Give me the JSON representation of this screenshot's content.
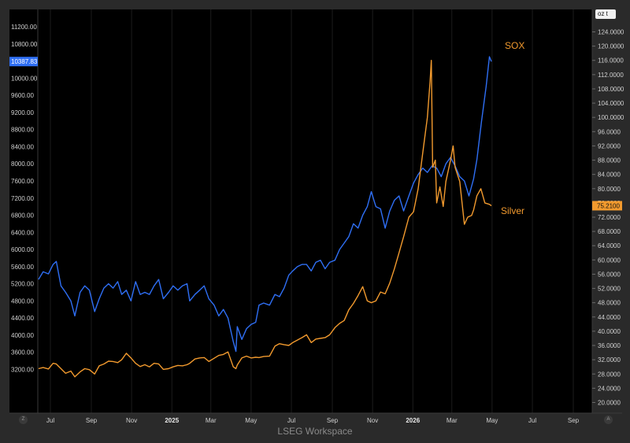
{
  "footer_text": "LSEG Workspace",
  "unit_selector": "oz t",
  "corner_left": "Z",
  "corner_right": "A",
  "colors": {
    "background": "#000000",
    "grid": "#1c1c1c",
    "sox": "#2f6ff5",
    "silver": "#f29a2e",
    "text": "#d0d0d0"
  },
  "chart_data": {
    "type": "line",
    "grid": false,
    "x_ticks": [
      {
        "label": "Jul",
        "date": "2024-07-01",
        "bold": false
      },
      {
        "label": "Sep",
        "date": "2024-09-01",
        "bold": false
      },
      {
        "label": "Nov",
        "date": "2024-11-01",
        "bold": false
      },
      {
        "label": "2025",
        "date": "2025-01-01",
        "bold": true
      },
      {
        "label": "Mar",
        "date": "2025-03-01",
        "bold": false
      },
      {
        "label": "May",
        "date": "2025-05-01",
        "bold": false
      },
      {
        "label": "Jul",
        "date": "2025-07-01",
        "bold": false
      },
      {
        "label": "Sep",
        "date": "2025-09-01",
        "bold": false
      },
      {
        "label": "Nov",
        "date": "2025-11-01",
        "bold": false
      },
      {
        "label": "2026",
        "date": "2026-01-01",
        "bold": true
      },
      {
        "label": "Mar",
        "date": "2026-03-01",
        "bold": false
      },
      {
        "label": "May",
        "date": "2026-05-01",
        "bold": false
      },
      {
        "label": "Jul",
        "date": "2026-07-01",
        "bold": false
      },
      {
        "label": "Sep",
        "date": "2026-09-01",
        "bold": false
      }
    ],
    "left_axis": {
      "ticks": [
        "11200.00",
        "10800.00",
        "10400.00",
        "10000.00",
        "9600.00",
        "9200.00",
        "8800.00",
        "8400.00",
        "8000.00",
        "7600.00",
        "7200.00",
        "6800.00",
        "6400.00",
        "6000.00",
        "5600.00",
        "5200.00",
        "4800.00",
        "4400.00",
        "4000.00",
        "3600.00",
        "3200.00"
      ],
      "range": [
        3200,
        11200
      ],
      "last_value_label": "10387.83"
    },
    "right_axis": {
      "ticks": [
        "124.0000",
        "120.0000",
        "116.0000",
        "112.0000",
        "108.0000",
        "104.0000",
        "100.0000",
        "96.0000",
        "92.0000",
        "88.0000",
        "84.0000",
        "80.0000",
        "76.0000",
        "72.0000",
        "68.0000",
        "64.0000",
        "60.0000",
        "56.0000",
        "52.0000",
        "48.0000",
        "44.0000",
        "40.0000",
        "36.0000",
        "32.0000",
        "28.0000",
        "24.0000",
        "20.0000"
      ],
      "range": [
        20,
        124
      ],
      "last_value_label": "75.2100"
    },
    "series": [
      {
        "name": "SOX",
        "axis": "left",
        "color": "#2f6ff5",
        "points": [
          [
            "2024-06-13",
            5300
          ],
          [
            "2024-06-20",
            5480
          ],
          [
            "2024-06-28",
            5430
          ],
          [
            "2024-07-05",
            5650
          ],
          [
            "2024-07-10",
            5720
          ],
          [
            "2024-07-17",
            5150
          ],
          [
            "2024-07-24",
            5000
          ],
          [
            "2024-08-01",
            4800
          ],
          [
            "2024-08-07",
            4450
          ],
          [
            "2024-08-15",
            5000
          ],
          [
            "2024-08-22",
            5150
          ],
          [
            "2024-08-29",
            5050
          ],
          [
            "2024-09-06",
            4550
          ],
          [
            "2024-09-13",
            4850
          ],
          [
            "2024-09-20",
            5100
          ],
          [
            "2024-09-27",
            5200
          ],
          [
            "2024-10-04",
            5100
          ],
          [
            "2024-10-11",
            5250
          ],
          [
            "2024-10-17",
            4950
          ],
          [
            "2024-10-24",
            5050
          ],
          [
            "2024-10-31",
            4800
          ],
          [
            "2024-11-07",
            5250
          ],
          [
            "2024-11-14",
            4950
          ],
          [
            "2024-11-21",
            5000
          ],
          [
            "2024-11-28",
            4950
          ],
          [
            "2024-12-05",
            5150
          ],
          [
            "2024-12-12",
            5300
          ],
          [
            "2024-12-19",
            4850
          ],
          [
            "2024-12-27",
            5000
          ],
          [
            "2025-01-03",
            5150
          ],
          [
            "2025-01-10",
            5050
          ],
          [
            "2025-01-17",
            5150
          ],
          [
            "2025-01-24",
            5200
          ],
          [
            "2025-01-28",
            4800
          ],
          [
            "2025-02-05",
            4950
          ],
          [
            "2025-02-12",
            5050
          ],
          [
            "2025-02-19",
            5150
          ],
          [
            "2025-02-26",
            4850
          ],
          [
            "2025-03-06",
            4700
          ],
          [
            "2025-03-13",
            4450
          ],
          [
            "2025-03-20",
            4600
          ],
          [
            "2025-03-27",
            4400
          ],
          [
            "2025-04-04",
            3850
          ],
          [
            "2025-04-08",
            3620
          ],
          [
            "2025-04-10",
            4200
          ],
          [
            "2025-04-17",
            3900
          ],
          [
            "2025-04-24",
            4150
          ],
          [
            "2025-05-01",
            4250
          ],
          [
            "2025-05-08",
            4300
          ],
          [
            "2025-05-13",
            4700
          ],
          [
            "2025-05-20",
            4750
          ],
          [
            "2025-05-29",
            4700
          ],
          [
            "2025-06-06",
            4950
          ],
          [
            "2025-06-13",
            4900
          ],
          [
            "2025-06-20",
            5100
          ],
          [
            "2025-06-27",
            5400
          ],
          [
            "2025-07-03",
            5500
          ],
          [
            "2025-07-10",
            5600
          ],
          [
            "2025-07-17",
            5650
          ],
          [
            "2025-07-24",
            5650
          ],
          [
            "2025-07-31",
            5500
          ],
          [
            "2025-08-07",
            5700
          ],
          [
            "2025-08-14",
            5750
          ],
          [
            "2025-08-21",
            5550
          ],
          [
            "2025-08-28",
            5700
          ],
          [
            "2025-09-05",
            5750
          ],
          [
            "2025-09-12",
            6000
          ],
          [
            "2025-09-19",
            6150
          ],
          [
            "2025-09-26",
            6300
          ],
          [
            "2025-10-03",
            6600
          ],
          [
            "2025-10-10",
            6500
          ],
          [
            "2025-10-17",
            6800
          ],
          [
            "2025-10-24",
            7000
          ],
          [
            "2025-10-30",
            7350
          ],
          [
            "2025-11-06",
            7000
          ],
          [
            "2025-11-13",
            6950
          ],
          [
            "2025-11-20",
            6500
          ],
          [
            "2025-11-27",
            6900
          ],
          [
            "2025-12-04",
            7150
          ],
          [
            "2025-12-11",
            7250
          ],
          [
            "2025-12-18",
            6900
          ],
          [
            "2025-12-26",
            7250
          ],
          [
            "2026-01-02",
            7550
          ],
          [
            "2026-01-09",
            7750
          ],
          [
            "2026-01-16",
            7900
          ],
          [
            "2026-01-23",
            7800
          ],
          [
            "2026-01-30",
            7950
          ],
          [
            "2026-02-06",
            7900
          ],
          [
            "2026-02-13",
            7700
          ],
          [
            "2026-02-20",
            8000
          ],
          [
            "2026-02-27",
            8150
          ],
          [
            "2026-03-06",
            7950
          ],
          [
            "2026-03-13",
            7700
          ],
          [
            "2026-03-20",
            7600
          ],
          [
            "2026-03-27",
            7250
          ],
          [
            "2026-04-03",
            7650
          ],
          [
            "2026-04-08",
            8100
          ],
          [
            "2026-04-15",
            9000
          ],
          [
            "2026-04-22",
            9800
          ],
          [
            "2026-04-27",
            10500
          ],
          [
            "2026-04-30",
            10387.83
          ]
        ]
      },
      {
        "name": "Silver",
        "axis": "right",
        "color": "#f29a2e",
        "points": [
          [
            "2024-06-13",
            29.5
          ],
          [
            "2024-06-20",
            29.8
          ],
          [
            "2024-06-28",
            29.4
          ],
          [
            "2024-07-05",
            31.0
          ],
          [
            "2024-07-10",
            30.8
          ],
          [
            "2024-07-17",
            29.5
          ],
          [
            "2024-07-24",
            28.2
          ],
          [
            "2024-08-01",
            28.8
          ],
          [
            "2024-08-07",
            27.2
          ],
          [
            "2024-08-15",
            28.6
          ],
          [
            "2024-08-22",
            29.5
          ],
          [
            "2024-08-29",
            29.2
          ],
          [
            "2024-09-06",
            28.0
          ],
          [
            "2024-09-13",
            30.3
          ],
          [
            "2024-09-20",
            30.8
          ],
          [
            "2024-09-27",
            31.6
          ],
          [
            "2024-10-04",
            31.5
          ],
          [
            "2024-10-11",
            31.2
          ],
          [
            "2024-10-17",
            32.0
          ],
          [
            "2024-10-24",
            33.8
          ],
          [
            "2024-10-31",
            32.5
          ],
          [
            "2024-11-07",
            31.0
          ],
          [
            "2024-11-14",
            30.1
          ],
          [
            "2024-11-21",
            30.6
          ],
          [
            "2024-11-28",
            30.0
          ],
          [
            "2024-12-05",
            31.0
          ],
          [
            "2024-12-12",
            30.8
          ],
          [
            "2024-12-19",
            29.3
          ],
          [
            "2024-12-27",
            29.5
          ],
          [
            "2025-01-03",
            30.0
          ],
          [
            "2025-01-10",
            30.4
          ],
          [
            "2025-01-17",
            30.3
          ],
          [
            "2025-01-24",
            30.6
          ],
          [
            "2025-01-28",
            31.0
          ],
          [
            "2025-02-05",
            32.2
          ],
          [
            "2025-02-12",
            32.5
          ],
          [
            "2025-02-19",
            32.6
          ],
          [
            "2025-02-26",
            31.5
          ],
          [
            "2025-03-06",
            32.4
          ],
          [
            "2025-03-13",
            33.2
          ],
          [
            "2025-03-20",
            33.5
          ],
          [
            "2025-03-27",
            34.2
          ],
          [
            "2025-04-04",
            30.0
          ],
          [
            "2025-04-08",
            29.5
          ],
          [
            "2025-04-10",
            30.5
          ],
          [
            "2025-04-17",
            32.5
          ],
          [
            "2025-04-24",
            33.0
          ],
          [
            "2025-05-01",
            32.5
          ],
          [
            "2025-05-08",
            32.7
          ],
          [
            "2025-05-13",
            32.6
          ],
          [
            "2025-05-20",
            32.9
          ],
          [
            "2025-05-29",
            33.0
          ],
          [
            "2025-06-06",
            35.8
          ],
          [
            "2025-06-13",
            36.5
          ],
          [
            "2025-06-20",
            36.2
          ],
          [
            "2025-06-27",
            36.0
          ],
          [
            "2025-07-03",
            36.8
          ],
          [
            "2025-07-10",
            37.5
          ],
          [
            "2025-07-17",
            38.2
          ],
          [
            "2025-07-24",
            39.0
          ],
          [
            "2025-07-31",
            36.8
          ],
          [
            "2025-08-07",
            37.8
          ],
          [
            "2025-08-14",
            38.0
          ],
          [
            "2025-08-21",
            38.2
          ],
          [
            "2025-08-28",
            39.0
          ],
          [
            "2025-09-05",
            41.0
          ],
          [
            "2025-09-12",
            42.2
          ],
          [
            "2025-09-19",
            43.0
          ],
          [
            "2025-09-26",
            46.0
          ],
          [
            "2025-10-03",
            47.8
          ],
          [
            "2025-10-10",
            50.0
          ],
          [
            "2025-10-17",
            52.5
          ],
          [
            "2025-10-24",
            48.5
          ],
          [
            "2025-10-30",
            48.0
          ],
          [
            "2025-11-06",
            48.5
          ],
          [
            "2025-11-13",
            51.0
          ],
          [
            "2025-11-20",
            50.5
          ],
          [
            "2025-11-27",
            53.5
          ],
          [
            "2025-12-04",
            57.5
          ],
          [
            "2025-12-11",
            62.0
          ],
          [
            "2025-12-18",
            66.5
          ],
          [
            "2025-12-26",
            72.0
          ],
          [
            "2026-01-02",
            73.5
          ],
          [
            "2026-01-09",
            80.0
          ],
          [
            "2026-01-16",
            90.0
          ],
          [
            "2026-01-23",
            100.0
          ],
          [
            "2026-01-27",
            110.0
          ],
          [
            "2026-01-29",
            116.0
          ],
          [
            "2026-01-31",
            86.0
          ],
          [
            "2026-02-04",
            88.0
          ],
          [
            "2026-02-06",
            76.0
          ],
          [
            "2026-02-11",
            80.5
          ],
          [
            "2026-02-16",
            75.0
          ],
          [
            "2026-02-20",
            82.0
          ],
          [
            "2026-02-27",
            88.0
          ],
          [
            "2026-03-03",
            92.0
          ],
          [
            "2026-03-06",
            86.0
          ],
          [
            "2026-03-13",
            82.0
          ],
          [
            "2026-03-20",
            70.0
          ],
          [
            "2026-03-25",
            72.0
          ],
          [
            "2026-03-31",
            72.5
          ],
          [
            "2026-04-03",
            74.0
          ],
          [
            "2026-04-08",
            78.0
          ],
          [
            "2026-04-14",
            80.0
          ],
          [
            "2026-04-20",
            76.0
          ],
          [
            "2026-04-27",
            75.6
          ],
          [
            "2026-04-30",
            75.21
          ]
        ]
      }
    ]
  }
}
